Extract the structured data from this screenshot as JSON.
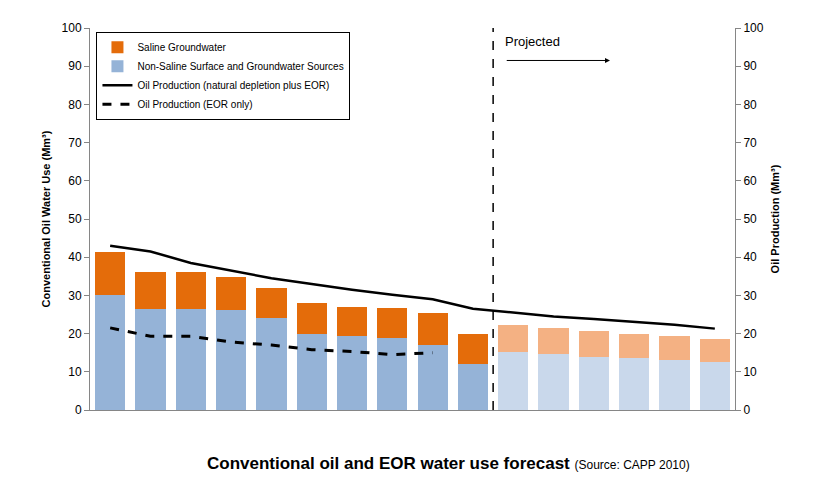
{
  "chart_data": {
    "type": "bar",
    "title": "Conventional oil and EOR water use forecast",
    "subtitle": "(Source: CAPP 2010)",
    "categories": [
      null,
      null,
      null,
      null,
      null,
      null,
      null,
      null,
      null,
      null,
      null,
      null,
      null,
      null,
      null,
      null
    ],
    "stacked": true,
    "grid": false,
    "legend": "upper left",
    "y_label": "Conventional Oil Water Use (Mm³)",
    "y2_label": "Oil Production (Mm³)",
    "ylim": [
      0,
      100
    ],
    "yticks": [
      0,
      10,
      20,
      30,
      40,
      50,
      60,
      70,
      80,
      90,
      100
    ],
    "y2lim": [
      0,
      100
    ],
    "y2ticks": [
      0,
      10,
      20,
      30,
      40,
      50,
      60,
      70,
      80,
      90,
      100
    ],
    "annotations": [
      "Projected"
    ],
    "series": [
      {
        "name": "Non-Saline Surface and Groundwater Sources",
        "type": "bar",
        "colors": [
          "#95b3d7",
          "#95b3d7",
          "#95b3d7",
          "#95b3d7",
          "#95b3d7",
          "#95b3d7",
          "#95b3d7",
          "#95b3d7",
          "#95b3d7",
          "#95b3d7",
          "#c9d8eb",
          "#c9d8eb",
          "#c9d8eb",
          "#c9d8eb",
          "#c9d8eb",
          "#c9d8eb"
        ],
        "values": [
          30,
          26.5,
          26.5,
          26.2,
          24,
          20,
          19.3,
          18.8,
          17,
          12,
          15.3,
          14.6,
          13.8,
          13.5,
          13,
          12.5
        ]
      },
      {
        "name": "Saline Groundwater",
        "type": "bar",
        "colors": [
          "#e46c0a",
          "#e46c0a",
          "#e46c0a",
          "#e46c0a",
          "#e46c0a",
          "#e46c0a",
          "#e46c0a",
          "#e46c0a",
          "#e46c0a",
          "#e46c0a",
          "#f4b183",
          "#f4b183",
          "#f4b183",
          "#f4b183",
          "#f4b183",
          "#f4b183"
        ],
        "values": [
          11.3,
          9.5,
          9.5,
          8.6,
          8,
          8,
          7.7,
          7.9,
          8.5,
          8,
          6.9,
          6.8,
          6.8,
          6.5,
          6.3,
          6
        ]
      },
      {
        "name": "Oil Production (natural depletion plus EOR)",
        "type": "line",
        "axis": "y2",
        "color": "#000000",
        "line_style": "solid",
        "values": [
          43,
          41.5,
          38.5,
          36.5,
          34.5,
          33,
          31.5,
          30.2,
          29,
          26.5,
          25.5,
          24.5,
          23.8,
          23,
          22.3,
          21.3
        ]
      },
      {
        "name": "Oil Production (EOR only)",
        "type": "line",
        "axis": "y2",
        "color": "#000000",
        "line_style": "dash",
        "values": [
          21.5,
          19.3,
          19.3,
          17.8,
          17,
          15.8,
          15.3,
          14.5,
          15,
          null,
          null,
          null,
          null,
          null,
          null,
          null
        ]
      }
    ]
  }
}
